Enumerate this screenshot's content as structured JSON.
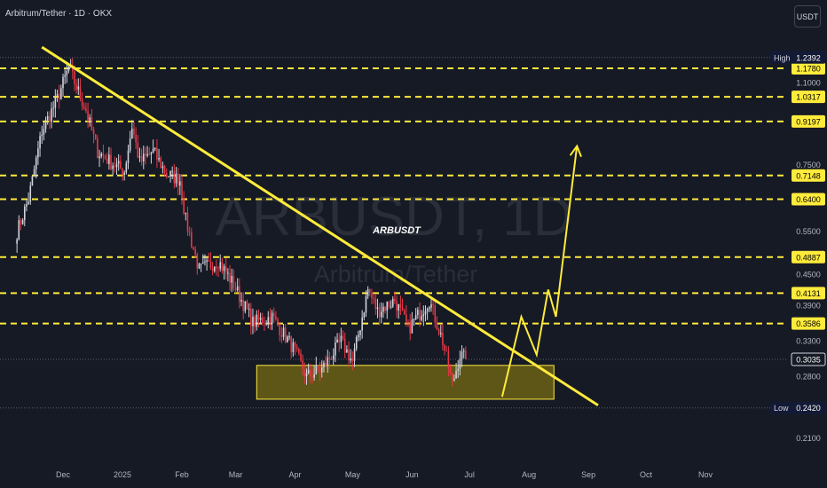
{
  "header": {
    "title": "Arbitrum/Tether · 1D · OKX",
    "currency": "USDT"
  },
  "watermark": {
    "symbol": "ARBUSDT, 1D",
    "name": "Arbitrum/Tether"
  },
  "annotation": "ARBUSDT",
  "colors": {
    "background": "#161a25",
    "up": "#d1d4dc",
    "down": "#e53946",
    "trendline": "#ffeb3b",
    "support_box": "#6b6215",
    "price_label": "#ffeb3b"
  },
  "chart_data": {
    "type": "candlestick",
    "y_scale": "log",
    "ylim": [
      0.19,
      1.3
    ],
    "xlim": [
      "2024-11-07",
      "2025-11-20"
    ],
    "x_ticks": [
      {
        "date": "2024-12-01",
        "label": "Dec"
      },
      {
        "date": "2025-01-01",
        "label": "2025"
      },
      {
        "date": "2025-02-01",
        "label": "Feb"
      },
      {
        "date": "2025-03-01",
        "label": "Mar"
      },
      {
        "date": "2025-04-01",
        "label": "Apr"
      },
      {
        "date": "2025-05-01",
        "label": "May"
      },
      {
        "date": "2025-06-01",
        "label": "Jun"
      },
      {
        "date": "2025-07-01",
        "label": "Jul"
      },
      {
        "date": "2025-08-01",
        "label": "Aug"
      },
      {
        "date": "2025-09-01",
        "label": "Sep"
      },
      {
        "date": "2025-10-01",
        "label": "Oct"
      },
      {
        "date": "2025-11-01",
        "label": "Nov"
      }
    ],
    "y_ticks": [
      "1.1000",
      "0.7500",
      "0.5500",
      "0.4500",
      "0.3900",
      "0.3300",
      "0.2800",
      "0.2100"
    ],
    "price_levels": [
      {
        "label": "",
        "value": "1.1780",
        "dashed": true
      },
      {
        "label": "",
        "value": "1.0317",
        "dashed": true
      },
      {
        "label": "",
        "value": "0.9197",
        "dashed": true
      },
      {
        "label": "",
        "value": "0.7148",
        "dashed": true
      },
      {
        "label": "",
        "value": "0.6400",
        "dashed": true
      },
      {
        "label": "",
        "value": "0.4887",
        "dashed": true
      },
      {
        "label": "",
        "value": "0.4131",
        "dashed": true
      },
      {
        "label": "",
        "value": "0.3586",
        "dashed": true
      }
    ],
    "high": {
      "label": "High",
      "value": "1.2392"
    },
    "low": {
      "label": "Low",
      "value": "0.2420"
    },
    "last_price": "0.3035",
    "trendline": [
      {
        "date": "2024-11-20",
        "price": 1.3
      },
      {
        "date": "2025-09-06",
        "price": 0.245
      }
    ],
    "support_zone": {
      "from": "2025-03-12",
      "to": "2025-08-14",
      "low": 0.252,
      "high": 0.295
    },
    "projection": [
      {
        "date": "2025-07-18",
        "price": 0.255
      },
      {
        "date": "2025-07-28",
        "price": 0.37
      },
      {
        "date": "2025-08-05",
        "price": 0.31
      },
      {
        "date": "2025-08-11",
        "price": 0.42
      },
      {
        "date": "2025-08-15",
        "price": 0.37
      },
      {
        "date": "2025-08-26",
        "price": 0.82
      }
    ],
    "anchors": [
      {
        "date": "2024-11-07",
        "price": 0.55
      },
      {
        "date": "2024-11-13",
        "price": 0.64
      },
      {
        "date": "2024-11-20",
        "price": 0.88
      },
      {
        "date": "2024-11-27",
        "price": 1.0
      },
      {
        "date": "2024-12-04",
        "price": 1.18
      },
      {
        "date": "2024-12-08",
        "price": 1.08
      },
      {
        "date": "2024-12-13",
        "price": 0.97
      },
      {
        "date": "2024-12-19",
        "price": 0.8
      },
      {
        "date": "2024-12-26",
        "price": 0.76
      },
      {
        "date": "2025-01-02",
        "price": 0.73
      },
      {
        "date": "2025-01-06",
        "price": 0.9
      },
      {
        "date": "2025-01-10",
        "price": 0.76
      },
      {
        "date": "2025-01-17",
        "price": 0.8
      },
      {
        "date": "2025-01-24",
        "price": 0.72
      },
      {
        "date": "2025-01-31",
        "price": 0.7
      },
      {
        "date": "2025-02-03",
        "price": 0.58
      },
      {
        "date": "2025-02-10",
        "price": 0.46
      },
      {
        "date": "2025-02-20",
        "price": 0.48
      },
      {
        "date": "2025-02-28",
        "price": 0.43
      },
      {
        "date": "2025-03-10",
        "price": 0.36
      },
      {
        "date": "2025-03-20",
        "price": 0.37
      },
      {
        "date": "2025-03-31",
        "price": 0.32
      },
      {
        "date": "2025-04-07",
        "price": 0.28
      },
      {
        "date": "2025-04-15",
        "price": 0.29
      },
      {
        "date": "2025-04-25",
        "price": 0.33
      },
      {
        "date": "2025-05-01",
        "price": 0.3
      },
      {
        "date": "2025-05-09",
        "price": 0.42
      },
      {
        "date": "2025-05-14",
        "price": 0.38
      },
      {
        "date": "2025-05-23",
        "price": 0.4
      },
      {
        "date": "2025-05-30",
        "price": 0.35
      },
      {
        "date": "2025-06-10",
        "price": 0.4
      },
      {
        "date": "2025-06-17",
        "price": 0.33
      },
      {
        "date": "2025-06-22",
        "price": 0.27
      },
      {
        "date": "2025-06-26",
        "price": 0.31
      },
      {
        "date": "2025-06-29",
        "price": 0.3035
      }
    ]
  }
}
